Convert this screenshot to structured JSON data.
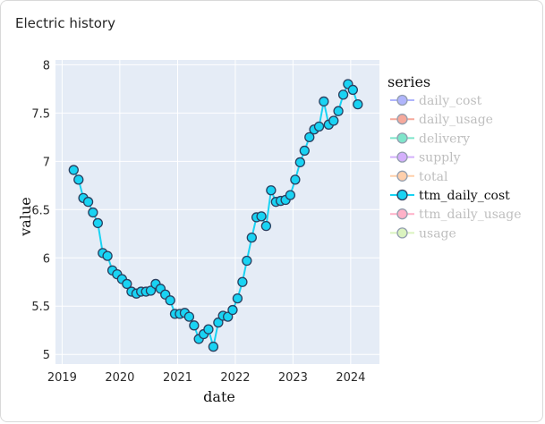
{
  "card": {
    "title": "Electric history"
  },
  "chart_data": {
    "type": "line",
    "xlabel": "date",
    "ylabel": "value",
    "x_ticks": [
      "2019",
      "2020",
      "2021",
      "2022",
      "2023",
      "2024"
    ],
    "y_ticks": [
      "5",
      "5.5",
      "6",
      "6.5",
      "7",
      "7.5",
      "8"
    ],
    "xlim": [
      "2018-11-20",
      "2024-07-01"
    ],
    "ylim": [
      4.9,
      8.05
    ],
    "grid": true,
    "legend": {
      "title": "series",
      "placement": "right",
      "entries": [
        {
          "name": "daily_cost",
          "color": "#636efa",
          "visible": false
        },
        {
          "name": "daily_usage",
          "color": "#ef553b",
          "visible": false
        },
        {
          "name": "delivery",
          "color": "#00cc96",
          "visible": false
        },
        {
          "name": "supply",
          "color": "#ab63fa",
          "visible": false
        },
        {
          "name": "total",
          "color": "#ffa15a",
          "visible": false
        },
        {
          "name": "ttm_daily_cost",
          "color": "#19d3f3",
          "visible": true
        },
        {
          "name": "ttm_daily_usage",
          "color": "#ff6692",
          "visible": false
        },
        {
          "name": "usage",
          "color": "#b6e880",
          "visible": false
        }
      ]
    },
    "series": [
      {
        "name": "ttm_daily_cost",
        "color": "#19d3f3",
        "x": [
          "2019-03-15",
          "2019-04-15",
          "2019-05-15",
          "2019-06-15",
          "2019-07-15",
          "2019-08-15",
          "2019-09-15",
          "2019-10-15",
          "2019-11-15",
          "2019-12-15",
          "2020-01-15",
          "2020-02-15",
          "2020-03-15",
          "2020-04-15",
          "2020-05-15",
          "2020-06-15",
          "2020-07-15",
          "2020-08-15",
          "2020-09-15",
          "2020-10-15",
          "2020-11-15",
          "2020-12-15",
          "2021-01-15",
          "2021-02-15",
          "2021-03-15",
          "2021-04-15",
          "2021-05-15",
          "2021-06-15",
          "2021-07-15",
          "2021-08-15",
          "2021-09-15",
          "2021-10-15",
          "2021-11-15",
          "2021-12-15",
          "2022-01-15",
          "2022-02-15",
          "2022-03-15",
          "2022-04-15",
          "2022-05-15",
          "2022-06-15",
          "2022-07-15",
          "2022-08-15",
          "2022-09-15",
          "2022-10-15",
          "2022-11-15",
          "2022-12-15",
          "2023-01-15",
          "2023-02-15",
          "2023-03-15",
          "2023-04-15",
          "2023-05-15",
          "2023-06-15",
          "2023-07-15",
          "2023-08-15",
          "2023-09-15",
          "2023-10-15",
          "2023-11-15",
          "2023-12-15",
          "2024-01-15",
          "2024-02-15"
        ],
        "y": [
          6.91,
          6.81,
          6.62,
          6.58,
          6.47,
          6.36,
          6.05,
          6.02,
          5.87,
          5.83,
          5.78,
          5.73,
          5.65,
          5.63,
          5.65,
          5.65,
          5.66,
          5.73,
          5.68,
          5.62,
          5.56,
          5.42,
          5.42,
          5.43,
          5.39,
          5.3,
          5.16,
          5.21,
          5.26,
          5.08,
          5.33,
          5.4,
          5.39,
          5.46,
          5.58,
          5.75,
          5.97,
          6.21,
          6.42,
          6.43,
          6.33,
          6.7,
          6.58,
          6.59,
          6.6,
          6.65,
          6.81,
          6.99,
          7.11,
          7.25,
          7.33,
          7.36,
          7.62,
          7.38,
          7.42,
          7.52,
          7.69,
          7.8,
          7.74,
          7.59
        ]
      }
    ]
  }
}
